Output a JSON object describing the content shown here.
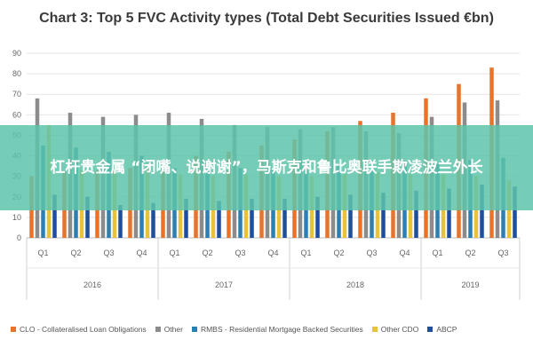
{
  "overlay": {
    "headline": "杠杆贵金属 “闭嘴、说谢谢”，马斯克和鲁比奥联手欺凌波兰外长",
    "background": "#5ec4aa"
  },
  "chart_data": {
    "type": "bar",
    "title": "Chart 3: Top 5 FVC Activity types (Total Debt Securities Issued €bn)",
    "ylim": [
      0,
      90
    ],
    "yticks": [
      0,
      10,
      20,
      30,
      40,
      50,
      60,
      70,
      80,
      90
    ],
    "grid": true,
    "legend_position": "bottom",
    "categories": [
      "Q1",
      "Q2",
      "Q3",
      "Q4",
      "Q1",
      "Q2",
      "Q3",
      "Q4",
      "Q1",
      "Q2",
      "Q3",
      "Q4",
      "Q1",
      "Q2",
      "Q3"
    ],
    "years": [
      {
        "label": "2016",
        "count": 4
      },
      {
        "label": "2017",
        "count": 4
      },
      {
        "label": "2018",
        "count": 4
      },
      {
        "label": "2019",
        "count": 3
      }
    ],
    "series": [
      {
        "name": "CLO - Collateralised Loan Obligations",
        "color": "#e8742c",
        "values": [
          30,
          32,
          33,
          34,
          35,
          40,
          42,
          45,
          48,
          52,
          57,
          61,
          68,
          75,
          83
        ]
      },
      {
        "name": "Other",
        "color": "#8c8c8c",
        "values": [
          68,
          61,
          59,
          60,
          61,
          58,
          55,
          54,
          53,
          54,
          52,
          51,
          59,
          66,
          67
        ]
      },
      {
        "name": "RMBS - Residential Mortgage Backed Securities",
        "color": "#2c7fb0",
        "values": [
          45,
          44,
          42,
          40,
          34,
          34,
          34,
          34,
          34,
          35,
          33,
          36,
          36,
          38,
          39
        ]
      },
      {
        "name": "Other CDO",
        "color": "#e9c23c",
        "values": [
          55,
          33,
          35,
          35,
          31,
          30,
          31,
          30,
          30,
          31,
          32,
          31,
          31,
          30,
          28
        ]
      },
      {
        "name": "ABCP",
        "color": "#1f4e9c",
        "values": [
          21,
          20,
          16,
          17,
          19,
          18,
          19,
          19,
          20,
          21,
          22,
          23,
          24,
          26,
          25
        ]
      }
    ]
  }
}
